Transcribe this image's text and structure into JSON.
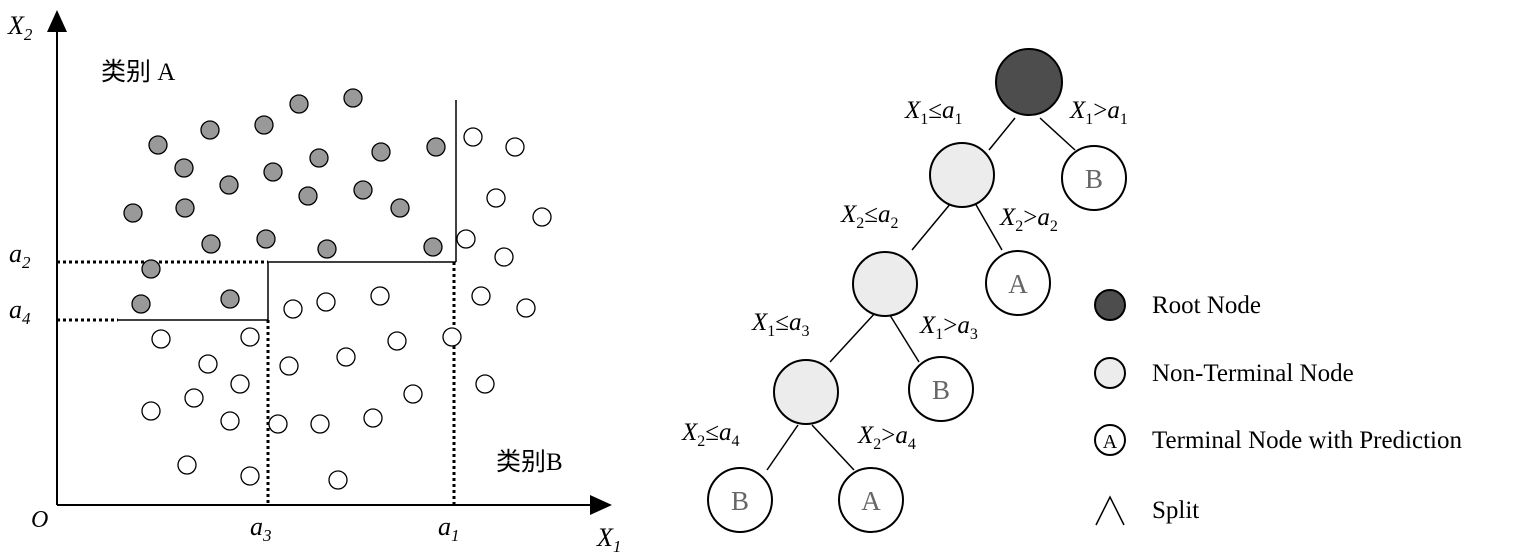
{
  "scatter": {
    "y_axis_label": "X",
    "y_axis_sub": "2",
    "x_axis_label": "X",
    "x_axis_sub": "1",
    "origin_label": "O",
    "class_a_label": "类别 A",
    "class_b_label": "类别B",
    "ticks": {
      "a2": {
        "main": "a",
        "sub": "2"
      },
      "a4": {
        "main": "a",
        "sub": "4"
      },
      "a3": {
        "main": "a",
        "sub": "3"
      },
      "a1": {
        "main": "a",
        "sub": "1"
      }
    }
  },
  "tree": {
    "edge_labels": {
      "x1_le_a1": {
        "v": "X",
        "vs": "1",
        "op": "≤",
        "a": "a",
        "as": "1"
      },
      "x1_gt_a1": {
        "v": "X",
        "vs": "1",
        "op": ">",
        "a": "a",
        "as": "1"
      },
      "x2_le_a2": {
        "v": "X",
        "vs": "2",
        "op": "≤",
        "a": "a",
        "as": "2"
      },
      "x2_gt_a2": {
        "v": "X",
        "vs": "2",
        "op": ">",
        "a": "a",
        "as": "2"
      },
      "x1_le_a3": {
        "v": "X",
        "vs": "1",
        "op": "≤",
        "a": "a",
        "as": "3"
      },
      "x1_gt_a3": {
        "v": "X",
        "vs": "1",
        "op": ">",
        "a": "a",
        "as": "3"
      },
      "x2_le_a4": {
        "v": "X",
        "vs": "2",
        "op": "≤",
        "a": "a",
        "as": "4"
      },
      "x2_gt_a4": {
        "v": "X",
        "vs": "2",
        "op": ">",
        "a": "a",
        "as": "4"
      }
    },
    "terminal_labels": {
      "t1": "B",
      "t2": "A",
      "t3": "B",
      "t4": "B",
      "t5": "A"
    }
  },
  "legend": {
    "root": "Root Node",
    "nonterminal": "Non-Terminal Node",
    "terminal": "Terminal Node with Prediction",
    "terminal_symbol": "A",
    "split": "Split"
  },
  "colors": {
    "root_fill": "#4d4d4d",
    "nonterminal_fill": "#ececec",
    "class_a_fill": "#999999",
    "terminal_text": "#666666"
  }
}
